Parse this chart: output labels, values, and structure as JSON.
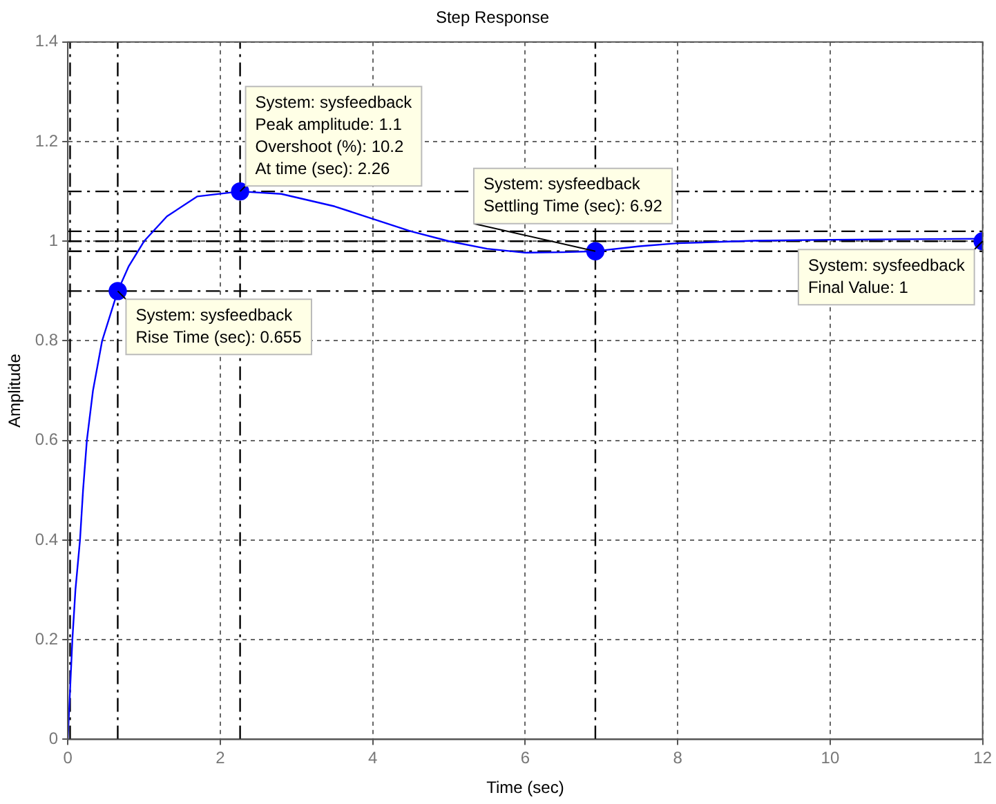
{
  "chart_data": {
    "type": "line",
    "title": "Step Response",
    "xlabel": "Time (sec)",
    "ylabel": "Amplitude",
    "xlim": [
      0,
      12
    ],
    "xticks": [
      0,
      2,
      4,
      6,
      8,
      10,
      12
    ],
    "ylim": [
      0,
      1.4
    ],
    "yticks": [
      0,
      0.2,
      0.4,
      0.6,
      0.8,
      1,
      1.2,
      1.4
    ],
    "grid": true,
    "legend": false,
    "series": [
      {
        "color": "#0000ff",
        "marker": "none",
        "x": [
          0,
          0.03,
          0.06,
          0.1,
          0.16,
          0.2,
          0.25,
          0.33,
          0.45,
          0.655,
          0.8,
          1.0,
          1.3,
          1.7,
          2.26,
          2.8,
          3.5,
          4,
          4.5,
          5,
          5.5,
          6,
          6.5,
          6.92,
          7.5,
          8,
          9,
          10,
          11,
          12
        ],
        "values": [
          0,
          0.1,
          0.2,
          0.3,
          0.4,
          0.5,
          0.6,
          0.7,
          0.8,
          0.9,
          0.95,
          1.0,
          1.05,
          1.09,
          1.1,
          1.095,
          1.07,
          1.045,
          1.02,
          1.0,
          0.985,
          0.977,
          0.978,
          0.98,
          0.99,
          0.996,
          1.001,
          1.003,
          1.004,
          1.005
        ]
      },
      {
        "type": "scatter",
        "color": "#0000ff",
        "marker": "circle",
        "x": [
          0.655,
          2.26,
          6.92,
          12
        ],
        "values": [
          0.9,
          1.1,
          0.98,
          1
        ]
      }
    ],
    "ref_lines": [
      {
        "axis": "y",
        "value": 0.9,
        "color": "#000000",
        "line_style": "dashed"
      },
      {
        "axis": "y",
        "value": 1.1,
        "color": "#000000",
        "line_style": "dashed"
      },
      {
        "axis": "y",
        "value": 0.98,
        "color": "#000000",
        "line_style": "dashed"
      },
      {
        "axis": "y",
        "value": 1.02,
        "color": "#000000",
        "line_style": "dashed"
      },
      {
        "axis": "y",
        "value": 1,
        "color": "#000000",
        "line_style": "dashed"
      },
      {
        "axis": "x",
        "value": 0.03,
        "color": "#000000",
        "line_style": "dashed"
      },
      {
        "axis": "x",
        "value": 0.655,
        "color": "#000000",
        "line_style": "dashed"
      },
      {
        "axis": "x",
        "value": 2.26,
        "color": "#000000",
        "line_style": "dashed"
      },
      {
        "axis": "x",
        "value": 6.92,
        "color": "#000000",
        "line_style": "dashed"
      }
    ],
    "annotations": [
      {
        "text": "System: sysfeedback\nRise Time (sec): 0.655",
        "x": 0.655,
        "y": 0.9
      },
      {
        "text": "System: sysfeedback\nPeak amplitude: 1.1\nOvershoot (%): 10.2\nAt time (sec): 2.26",
        "x": 2.26,
        "y": 1.1
      },
      {
        "text": "System: sysfeedback\nSettling Time (sec): 6.92",
        "x": 6.92,
        "y": 0.98
      },
      {
        "text": "System: sysfeedback\nFinal Value: 1",
        "x": 12,
        "y": 1
      }
    ]
  }
}
